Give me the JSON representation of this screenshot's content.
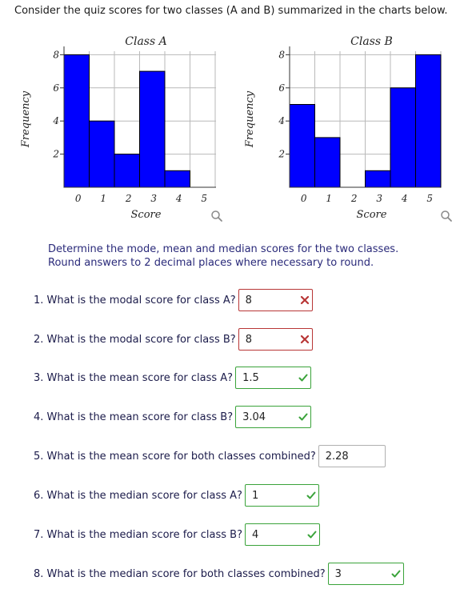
{
  "intro": "Consider the quiz scores for two classes (A and B) summarized in the charts below.",
  "charts": [
    {
      "title": "Class A",
      "xlabel": "Score",
      "ylabel": "Frequency",
      "y_ticks": [
        "2",
        "4",
        "6",
        "8"
      ],
      "x_ticks": [
        "0",
        "1",
        "2",
        "3",
        "4",
        "5"
      ]
    },
    {
      "title": "Class B",
      "xlabel": "Score",
      "ylabel": "Frequency",
      "y_ticks": [
        "2",
        "4",
        "6",
        "8"
      ],
      "x_ticks": [
        "0",
        "1",
        "2",
        "3",
        "4",
        "5"
      ]
    }
  ],
  "chart_data": [
    {
      "type": "bar",
      "title": "Class A",
      "xlabel": "Score",
      "ylabel": "Frequency",
      "categories": [
        0,
        1,
        2,
        3,
        4,
        5
      ],
      "values": [
        8,
        4,
        2,
        7,
        1,
        0
      ],
      "ylim": [
        0,
        8.5
      ],
      "color": "#0000ff",
      "grid": true
    },
    {
      "type": "bar",
      "title": "Class B",
      "xlabel": "Score",
      "ylabel": "Frequency",
      "categories": [
        0,
        1,
        2,
        3,
        4,
        5
      ],
      "values": [
        5,
        3,
        0,
        1,
        6,
        8
      ],
      "ylim": [
        0,
        8.5
      ],
      "color": "#0000ff",
      "grid": true
    }
  ],
  "instructions": {
    "line1": "Determine the mode, mean and median scores for the two classes.",
    "line2": "Round answers to 2 decimal places where necessary to round."
  },
  "questions": [
    {
      "text": "1. What is the modal score for class A?",
      "answer": "8",
      "status": "wrong"
    },
    {
      "text": "2. What is the modal score for class B?",
      "answer": "8",
      "status": "wrong"
    },
    {
      "text": "3. What is the mean score for class A?",
      "answer": "1.5",
      "status": "right"
    },
    {
      "text": "4. What is the mean score for class B?",
      "answer": "3.04",
      "status": "right"
    },
    {
      "text": "5. What is the mean score for both classes combined?",
      "answer": "2.28",
      "status": "none"
    },
    {
      "text": "6. What is the median score for class A?",
      "answer": "1",
      "status": "right"
    },
    {
      "text": "7. What is the median score for class B?",
      "answer": "4",
      "status": "right"
    },
    {
      "text": "8. What is the median score for both classes combined?",
      "answer": "3",
      "status": "right"
    }
  ],
  "colors": {
    "wrong": "#b83636",
    "right": "#3aa33a",
    "bar": "#0000ff"
  }
}
